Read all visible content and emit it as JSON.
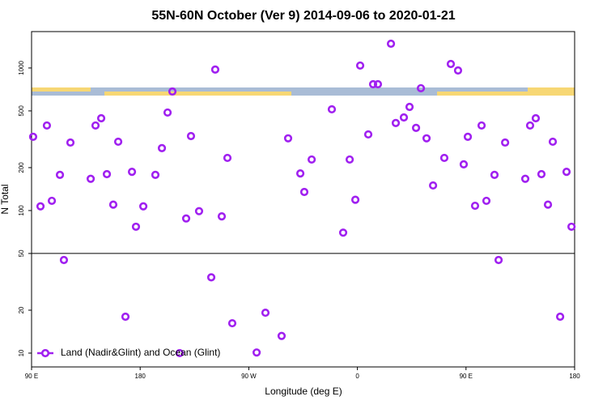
{
  "chart_data": {
    "type": "scatter",
    "title": "55N-60N October (Ver 9)   2014-09-06 to 2020-01-21",
    "x_label": "Longitude (deg E)",
    "y_label": "N Total",
    "xlim": [
      90,
      540
    ],
    "xticks": [
      {
        "value": 90,
        "label": "90 E"
      },
      {
        "value": 180,
        "label": "180"
      },
      {
        "value": 270,
        "label": "90 W"
      },
      {
        "value": 360,
        "label": "0"
      },
      {
        "value": 450,
        "label": "90 E"
      },
      {
        "value": 540,
        "label": "180"
      }
    ],
    "ylim": [
      8,
      1800
    ],
    "ylog": true,
    "yticks": [
      10,
      20,
      50,
      100,
      200,
      500,
      1000
    ],
    "hline": 50,
    "legend": "bottom-left",
    "series": [
      {
        "name": "Land (Nadir&Glint) and Ocean (Glint)",
        "color": "#a020f0",
        "x": [
          91.3,
          97.4,
          102.7,
          106.8,
          113.5,
          116.8,
          122.2,
          139,
          143,
          147.7,
          152.4,
          157.7,
          161.8,
          167.8,
          173.2,
          176.5,
          182.6,
          192.6,
          198,
          202.7,
          206.7,
          212.7,
          218.1,
          222.1,
          228.8,
          238.9,
          242.2,
          247.6,
          252.3,
          256.3,
          276.5,
          283.8,
          297.2,
          302.6,
          312.7,
          316,
          322.1,
          338.8,
          348.2,
          353.6,
          358.3,
          362.3,
          369,
          373,
          377,
          387.8,
          391.8,
          398.5,
          403.2,
          408.6,
          412.6,
          417.3,
          422.7,
          432,
          437.4,
          443.4,
          448.1,
          451.5,
          457.5,
          462.9,
          466.9,
          473.6,
          477,
          482.4,
          499.1,
          503.1,
          507.8,
          512.5,
          517.9,
          521.9,
          528,
          533.3,
          537.4
        ],
        "values": [
          329,
          107,
          395,
          117,
          178,
          45,
          300,
          167,
          395,
          444,
          180,
          110,
          304,
          18,
          187,
          77,
          107,
          178,
          274,
          487,
          684,
          10,
          88,
          333,
          99,
          34,
          975,
          91,
          234,
          16.2,
          10.1,
          19.2,
          13.2,
          321,
          182,
          135,
          228,
          513,
          70,
          228,
          119,
          1040,
          342,
          769,
          769,
          1480,
          411,
          450,
          533,
          380,
          721,
          321,
          150,
          234,
          1067,
          961,
          211,
          329,
          108,
          395,
          117,
          178,
          45,
          300,
          167,
          395,
          444,
          180,
          110,
          304,
          18,
          187,
          77
        ]
      }
    ]
  }
}
